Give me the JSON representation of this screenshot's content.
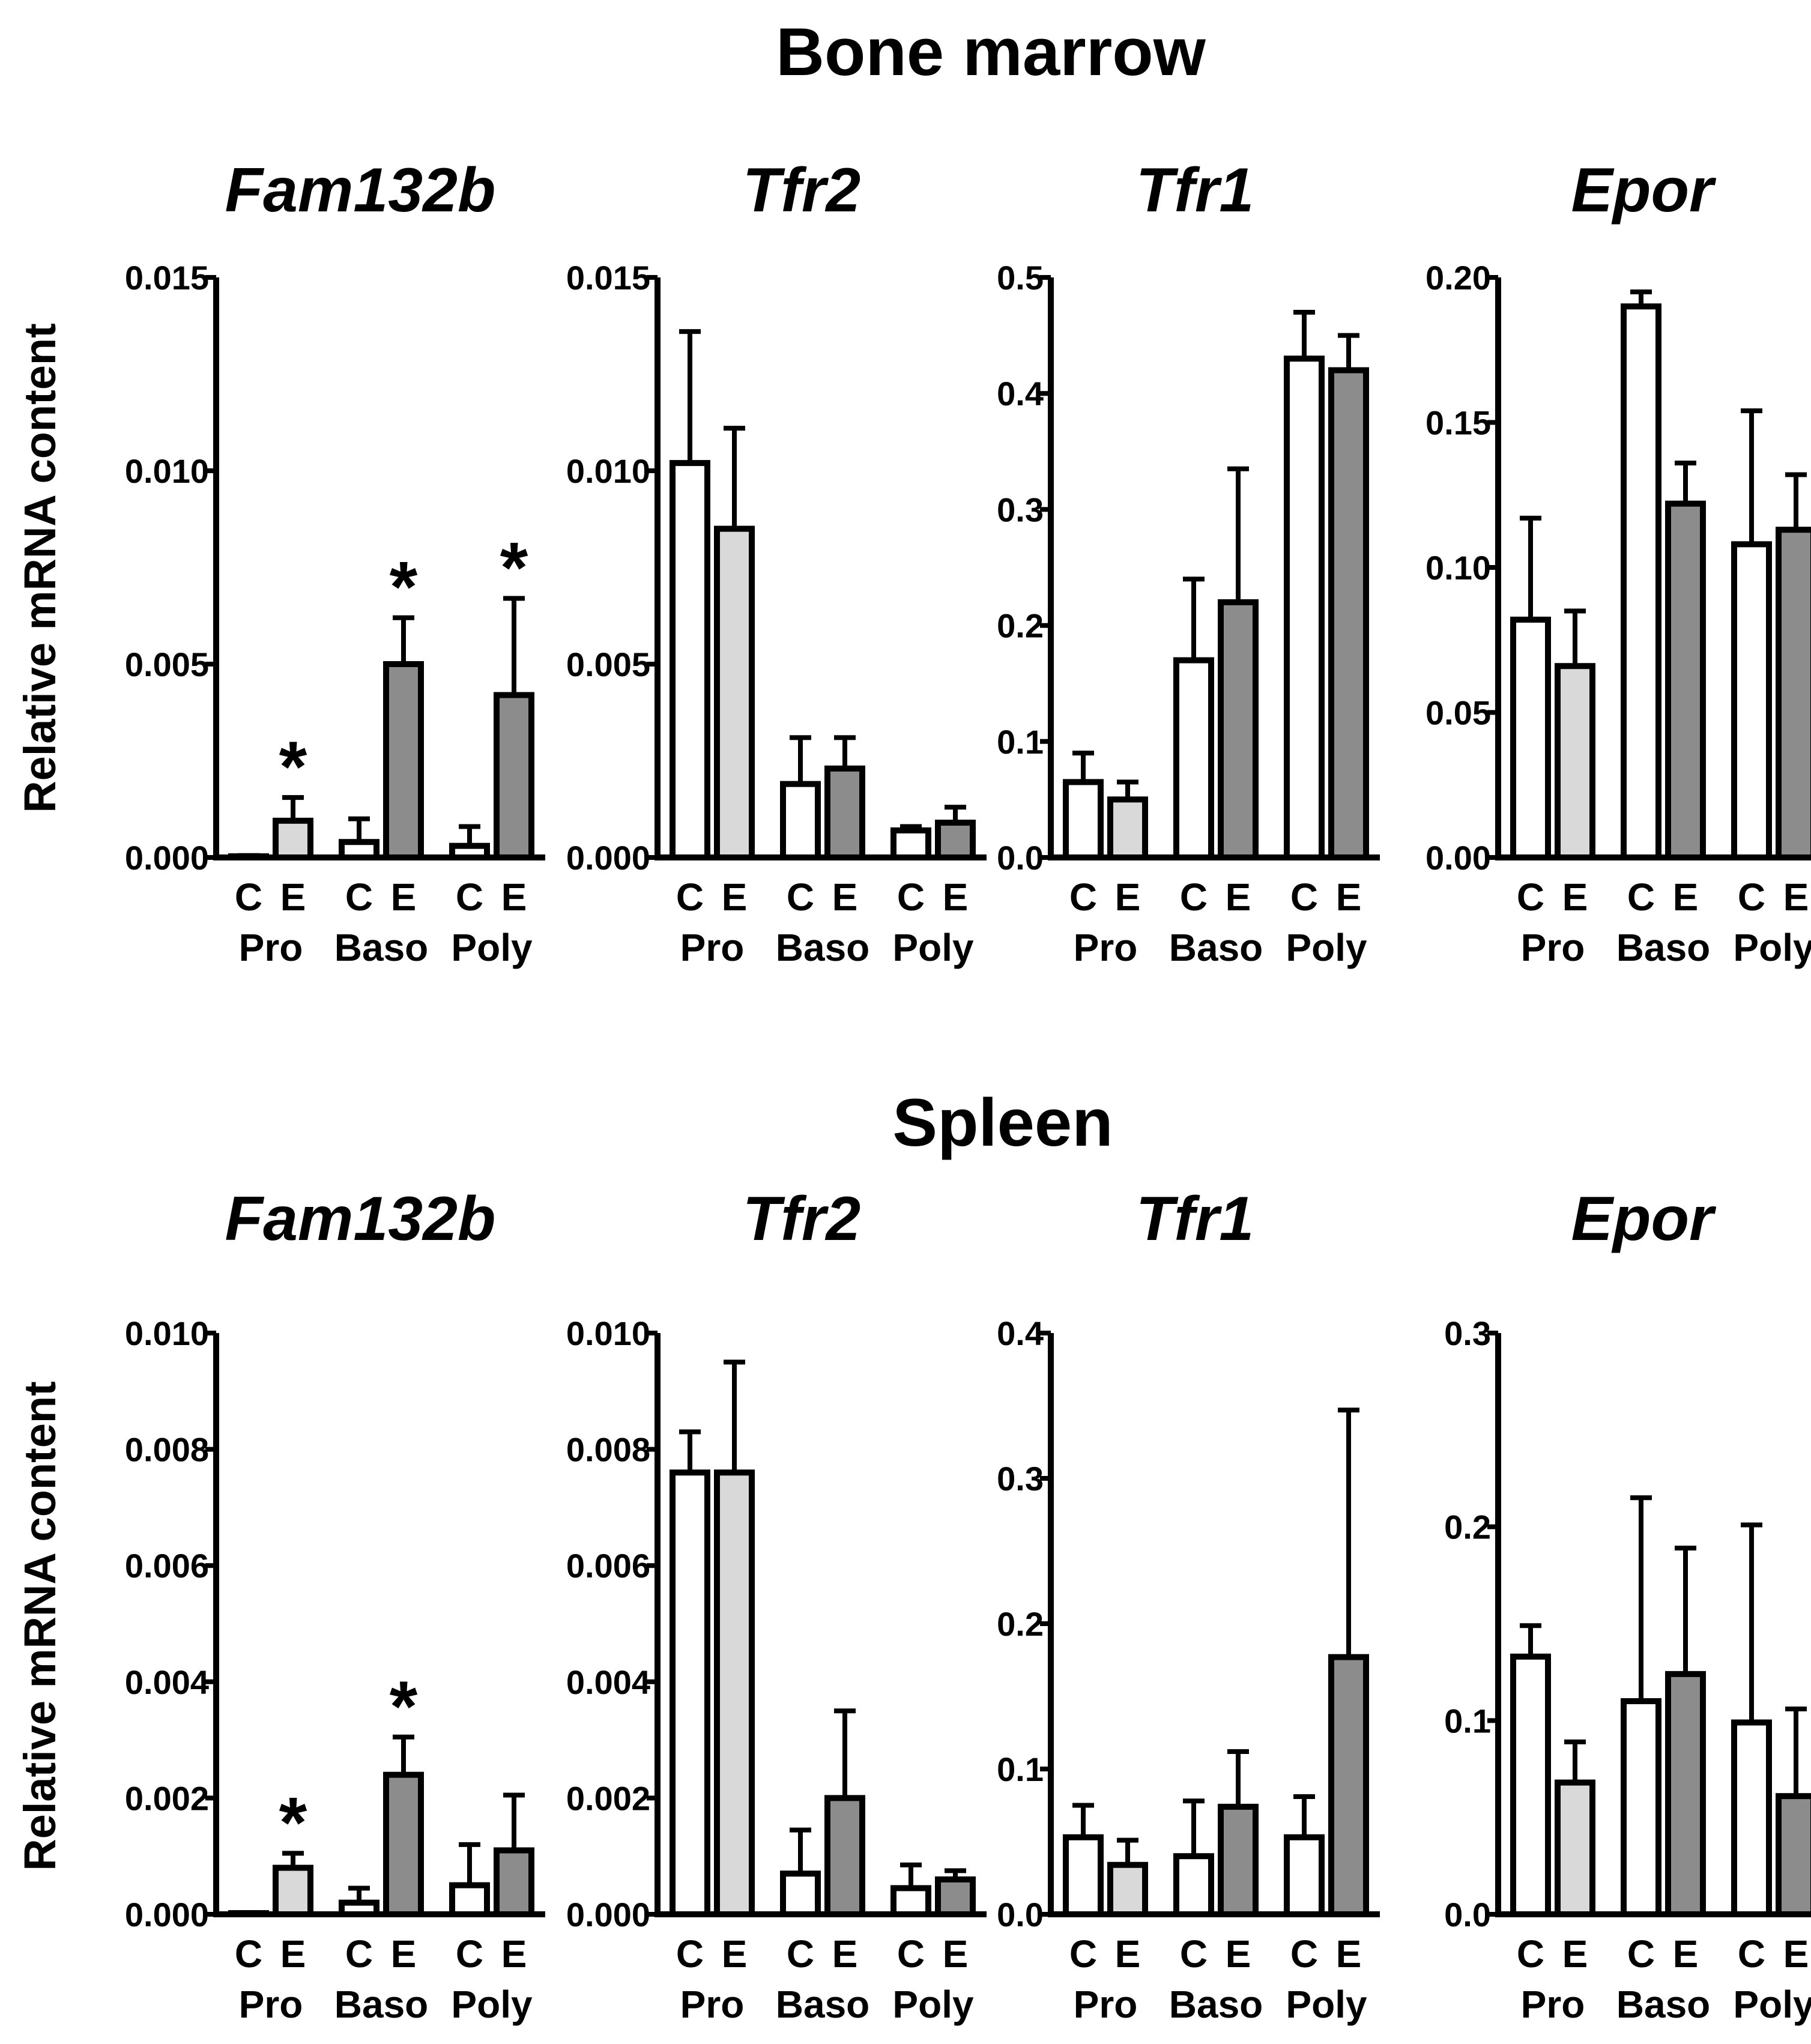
{
  "figure": {
    "section_titles": [
      "Bone marrow",
      "Spleen"
    ],
    "ylabel": "Relative mRNA content",
    "bar_letters": [
      "C",
      "E"
    ],
    "groups": [
      "Pro",
      "Baso",
      "Poly"
    ],
    "significance_symbol": "*",
    "colors": {
      "control": "#ffffff",
      "pro_e": "#d9d9d9",
      "later_e": "#8c8c8c",
      "stroke": "#000000"
    }
  },
  "chart_data": [
    {
      "type": "bar",
      "section": "Bone marrow",
      "title": "Fam132b",
      "categories": [
        "Pro",
        "Baso",
        "Poly"
      ],
      "ylim": [
        0,
        0.015
      ],
      "yticks": [
        "0.000",
        "0.005",
        "0.010",
        "0.015"
      ],
      "series": [
        {
          "name": "C",
          "values": [
            3e-05,
            0.0004,
            0.0003
          ],
          "errors": [
            2e-05,
            0.0006,
            0.0005
          ]
        },
        {
          "name": "E",
          "values": [
            0.00095,
            0.005,
            0.0042
          ],
          "errors": [
            0.0006,
            0.0012,
            0.0025
          ]
        }
      ],
      "significant": [
        [
          false,
          false,
          false
        ],
        [
          true,
          true,
          true
        ]
      ]
    },
    {
      "type": "bar",
      "section": "Bone marrow",
      "title": "Tfr2",
      "categories": [
        "Pro",
        "Baso",
        "Poly"
      ],
      "ylim": [
        0,
        0.015
      ],
      "yticks": [
        "0.000",
        "0.005",
        "0.010",
        "0.015"
      ],
      "series": [
        {
          "name": "C",
          "values": [
            0.0102,
            0.0019,
            0.0007
          ],
          "errors": [
            0.0034,
            0.0012,
            0.0001
          ]
        },
        {
          "name": "E",
          "values": [
            0.0085,
            0.0023,
            0.0009
          ],
          "errors": [
            0.0026,
            0.0008,
            0.0004
          ]
        }
      ],
      "significant": [
        [
          false,
          false,
          false
        ],
        [
          false,
          false,
          false
        ]
      ]
    },
    {
      "type": "bar",
      "section": "Bone marrow",
      "title": "Tfr1",
      "categories": [
        "Pro",
        "Baso",
        "Poly"
      ],
      "ylim": [
        0,
        0.5
      ],
      "yticks": [
        "0.0",
        "0.1",
        "0.2",
        "0.3",
        "0.4",
        "0.5"
      ],
      "series": [
        {
          "name": "C",
          "values": [
            0.065,
            0.17,
            0.43
          ],
          "errors": [
            0.025,
            0.07,
            0.04
          ]
        },
        {
          "name": "E",
          "values": [
            0.05,
            0.22,
            0.42
          ],
          "errors": [
            0.015,
            0.115,
            0.03
          ]
        }
      ],
      "significant": [
        [
          false,
          false,
          false
        ],
        [
          false,
          false,
          false
        ]
      ]
    },
    {
      "type": "bar",
      "section": "Bone marrow",
      "title": "Epor",
      "categories": [
        "Pro",
        "Baso",
        "Poly"
      ],
      "ylim": [
        0,
        0.2
      ],
      "yticks": [
        "0.00",
        "0.05",
        "0.10",
        "0.15",
        "0.20"
      ],
      "series": [
        {
          "name": "C",
          "values": [
            0.082,
            0.19,
            0.108
          ],
          "errors": [
            0.035,
            0.005,
            0.046
          ]
        },
        {
          "name": "E",
          "values": [
            0.066,
            0.122,
            0.113
          ],
          "errors": [
            0.019,
            0.014,
            0.019
          ]
        }
      ],
      "significant": [
        [
          false,
          false,
          false
        ],
        [
          false,
          false,
          false
        ]
      ]
    },
    {
      "type": "bar",
      "section": "Spleen",
      "title": "Fam132b",
      "categories": [
        "Pro",
        "Baso",
        "Poly"
      ],
      "ylim": [
        0,
        0.01
      ],
      "yticks": [
        "0.000",
        "0.002",
        "0.004",
        "0.006",
        "0.008",
        "0.010"
      ],
      "series": [
        {
          "name": "C",
          "values": [
            2e-05,
            0.0002,
            0.0005
          ],
          "errors": [
            1e-05,
            0.00025,
            0.0007
          ]
        },
        {
          "name": "E",
          "values": [
            0.0008,
            0.0024,
            0.0011
          ],
          "errors": [
            0.00025,
            0.00065,
            0.00095
          ]
        }
      ],
      "significant": [
        [
          false,
          false,
          false
        ],
        [
          true,
          true,
          false
        ]
      ]
    },
    {
      "type": "bar",
      "section": "Spleen",
      "title": "Tfr2",
      "categories": [
        "Pro",
        "Baso",
        "Poly"
      ],
      "ylim": [
        0,
        0.01
      ],
      "yticks": [
        "0.000",
        "0.002",
        "0.004",
        "0.006",
        "0.008",
        "0.010"
      ],
      "series": [
        {
          "name": "C",
          "values": [
            0.0076,
            0.0007,
            0.00045
          ],
          "errors": [
            0.0007,
            0.00075,
            0.0004
          ]
        },
        {
          "name": "E",
          "values": [
            0.0076,
            0.002,
            0.0006
          ],
          "errors": [
            0.0019,
            0.0015,
            0.00015
          ]
        }
      ],
      "significant": [
        [
          false,
          false,
          false
        ],
        [
          false,
          false,
          false
        ]
      ]
    },
    {
      "type": "bar",
      "section": "Spleen",
      "title": "Tfr1",
      "categories": [
        "Pro",
        "Baso",
        "Poly"
      ],
      "ylim": [
        0,
        0.4
      ],
      "yticks": [
        "0.0",
        "0.1",
        "0.2",
        "0.3",
        "0.4"
      ],
      "series": [
        {
          "name": "C",
          "values": [
            0.053,
            0.04,
            0.053
          ],
          "errors": [
            0.022,
            0.038,
            0.028
          ]
        },
        {
          "name": "E",
          "values": [
            0.034,
            0.074,
            0.177
          ],
          "errors": [
            0.017,
            0.038,
            0.17
          ]
        }
      ],
      "significant": [
        [
          false,
          false,
          false
        ],
        [
          false,
          false,
          false
        ]
      ]
    },
    {
      "type": "bar",
      "section": "Spleen",
      "title": "Epor",
      "categories": [
        "Pro",
        "Baso",
        "Poly"
      ],
      "ylim": [
        0,
        0.3
      ],
      "yticks": [
        "0.0",
        "0.1",
        "0.2",
        "0.3"
      ],
      "series": [
        {
          "name": "C",
          "values": [
            0.133,
            0.11,
            0.099
          ],
          "errors": [
            0.016,
            0.105,
            0.102
          ]
        },
        {
          "name": "E",
          "values": [
            0.068,
            0.124,
            0.061
          ],
          "errors": [
            0.021,
            0.065,
            0.045
          ]
        }
      ],
      "significant": [
        [
          false,
          false,
          false
        ],
        [
          false,
          false,
          false
        ]
      ]
    }
  ]
}
